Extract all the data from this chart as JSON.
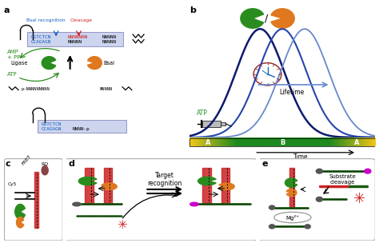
{
  "fig_width": 4.74,
  "fig_height": 3.04,
  "dpi": 100,
  "bg_color": "#ffffff",
  "green_color": "#2a8c1e",
  "orange_color": "#e07820",
  "blue_dark": "#0d1a6e",
  "blue_mid": "#2040aa",
  "blue_light": "#7090cc",
  "red_color": "#cc2222",
  "text_blue": "#1060c0",
  "text_green": "#2a8c1e",
  "text_red": "#cc2222",
  "magenta_color": "#cc00cc",
  "gray_dark": "#444444",
  "gray_med": "#888888",
  "seq_box_color": "#ccd4ee",
  "seq_box_edge": "#8888bb",
  "bsal_recognition_text": "BsaI recognition",
  "cleavage_text": "Cleavage",
  "amp_pp_text": "AMP\n+ PP",
  "ligase_text": "Ligase",
  "bsal_text": "BsaI",
  "atp_text": "ATP",
  "lifetime_text": "Lifetime",
  "time_text": "Time",
  "fret_text": "FRET",
  "rq_text": "RQ",
  "cy5_text": "Cy5",
  "target_recognition_text": "Target\nrecognition",
  "substrate_cleavage_text": "Substrate\ncleavage",
  "mg_text": "Mg²⁺",
  "seq1_blue": "GGTCTCN",
  "seq1_red": "NNNNNNN",
  "seq2_blue": "CCAGAGN",
  "seq2_black": "NNNNN",
  "p_nnn": "p-NNNNNNNNN",
  "nnnnn_str": "NNNNN",
  "bottom_seq1": "GGTCTCN",
  "bottom_seq2_blue": "CCAGAGN",
  "bottom_seq2_black": "NNNN-p",
  "a_label": "A",
  "b_label": "B"
}
